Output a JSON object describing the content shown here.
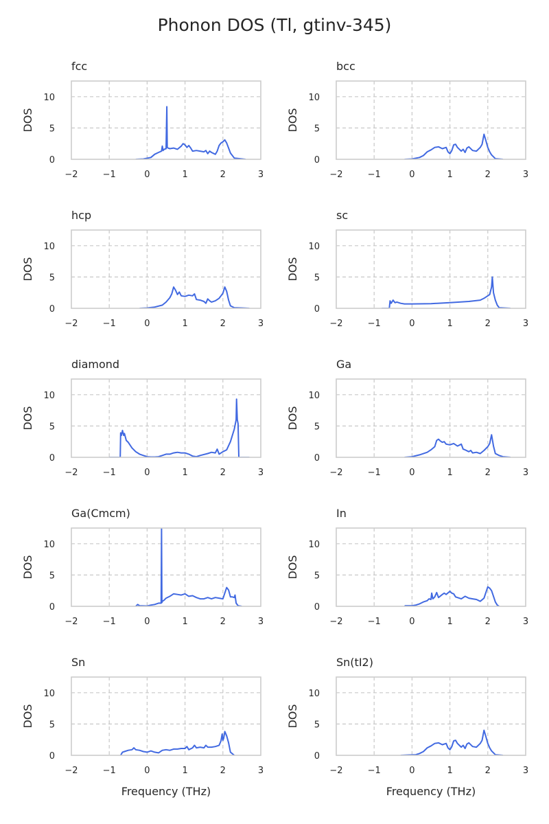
{
  "figure": {
    "title": "Phonon DOS (Tl, gtinv-345)",
    "x_label": "Frequency (THz)",
    "y_label": "DOS"
  },
  "colors": {
    "line": "#4169E1",
    "grid": "#c8c8c8",
    "frame": "#cccccc",
    "text": "#262626"
  },
  "chart_data": [
    {
      "type": "line",
      "title": "fcc",
      "xlabel": "",
      "ylabel": "DOS",
      "xlim": [
        -2,
        3
      ],
      "ylim": [
        0,
        12.5
      ],
      "xticks": [
        -2,
        -1,
        0,
        1,
        2,
        3
      ],
      "yticks": [
        0,
        5,
        10
      ],
      "grid": true,
      "x": [
        -0.3,
        -0.1,
        0.1,
        0.2,
        0.3,
        0.38,
        0.4,
        0.42,
        0.45,
        0.5,
        0.52,
        0.53,
        0.55,
        0.6,
        0.7,
        0.8,
        0.9,
        0.95,
        1.0,
        1.05,
        1.1,
        1.15,
        1.2,
        1.3,
        1.4,
        1.5,
        1.55,
        1.6,
        1.65,
        1.7,
        1.8,
        1.85,
        1.9,
        1.95,
        2.0,
        2.05,
        2.1,
        2.15,
        2.2,
        2.3,
        2.6
      ],
      "values": [
        0,
        0.05,
        0.3,
        0.8,
        1.1,
        1.3,
        2.1,
        1.4,
        1.6,
        1.7,
        8.4,
        1.9,
        1.8,
        1.7,
        1.8,
        1.6,
        2.1,
        2.5,
        2.3,
        1.9,
        2.2,
        1.8,
        1.3,
        1.4,
        1.3,
        1.2,
        1.4,
        0.9,
        1.3,
        1.1,
        0.8,
        1.3,
        2.2,
        2.6,
        2.8,
        3.1,
        2.6,
        1.8,
        1.0,
        0.2,
        0
      ]
    },
    {
      "type": "line",
      "title": "bcc",
      "xlabel": "",
      "ylabel": "DOS",
      "xlim": [
        -2,
        3
      ],
      "ylim": [
        0,
        12.5
      ],
      "xticks": [
        -2,
        -1,
        0,
        1,
        2,
        3
      ],
      "yticks": [
        0,
        5,
        10
      ],
      "grid": true,
      "x": [
        -0.2,
        0.0,
        0.2,
        0.3,
        0.4,
        0.5,
        0.6,
        0.7,
        0.8,
        0.9,
        0.95,
        1.0,
        1.05,
        1.1,
        1.15,
        1.2,
        1.3,
        1.35,
        1.4,
        1.45,
        1.5,
        1.6,
        1.7,
        1.8,
        1.85,
        1.9,
        1.95,
        2.0,
        2.05,
        2.1,
        2.2,
        2.4
      ],
      "values": [
        0,
        0.05,
        0.3,
        0.6,
        1.2,
        1.5,
        1.9,
        2.0,
        1.7,
        1.9,
        1.2,
        0.9,
        1.4,
        2.3,
        2.4,
        1.9,
        1.3,
        1.6,
        1.1,
        1.8,
        2.0,
        1.4,
        1.3,
        1.9,
        2.4,
        4.0,
        3.0,
        1.9,
        1.2,
        0.7,
        0.1,
        0
      ]
    },
    {
      "type": "line",
      "title": "hcp",
      "xlabel": "",
      "ylabel": "DOS",
      "xlim": [
        -2,
        3
      ],
      "ylim": [
        0,
        12.5
      ],
      "xticks": [
        -2,
        -1,
        0,
        1,
        2,
        3
      ],
      "yticks": [
        0,
        5,
        10
      ],
      "grid": true,
      "x": [
        -0.2,
        0.0,
        0.2,
        0.4,
        0.5,
        0.6,
        0.65,
        0.7,
        0.75,
        0.8,
        0.85,
        0.9,
        1.0,
        1.1,
        1.2,
        1.25,
        1.3,
        1.4,
        1.5,
        1.55,
        1.6,
        1.65,
        1.7,
        1.8,
        1.9,
        1.95,
        2.0,
        2.05,
        2.1,
        2.15,
        2.2,
        2.3,
        2.5,
        2.7
      ],
      "values": [
        0,
        0.05,
        0.2,
        0.5,
        1.0,
        1.7,
        2.3,
        3.4,
        2.9,
        2.2,
        2.6,
        2.0,
        1.9,
        2.1,
        2.0,
        2.3,
        1.4,
        1.3,
        1.1,
        0.8,
        1.5,
        1.2,
        1.0,
        1.2,
        1.6,
        2.0,
        2.4,
        3.4,
        2.7,
        1.3,
        0.4,
        0.1,
        0.05,
        0
      ]
    },
    {
      "type": "line",
      "title": "sc",
      "xlabel": "",
      "ylabel": "DOS",
      "xlim": [
        -2,
        3
      ],
      "ylim": [
        0,
        12.5
      ],
      "xticks": [
        -2,
        -1,
        0,
        1,
        2,
        3
      ],
      "yticks": [
        0,
        5,
        10
      ],
      "grid": true,
      "x": [
        -0.8,
        -0.6,
        -0.58,
        -0.55,
        -0.5,
        -0.45,
        -0.4,
        -0.3,
        -0.2,
        0.0,
        0.5,
        1.0,
        1.5,
        1.8,
        1.9,
        2.0,
        2.05,
        2.1,
        2.12,
        2.15,
        2.2,
        2.25,
        2.3,
        2.6
      ],
      "values": [
        0,
        0,
        1.2,
        0.8,
        1.3,
        0.9,
        1.0,
        0.8,
        0.7,
        0.7,
        0.75,
        0.9,
        1.1,
        1.3,
        1.6,
        2.0,
        2.2,
        3.4,
        5.0,
        2.5,
        1.3,
        0.5,
        0.1,
        0
      ]
    },
    {
      "type": "line",
      "title": "diamond",
      "xlabel": "",
      "ylabel": "DOS",
      "xlim": [
        -2,
        3
      ],
      "ylim": [
        0,
        12.5
      ],
      "xticks": [
        -2,
        -1,
        0,
        1,
        2,
        3
      ],
      "yticks": [
        0,
        5,
        10
      ],
      "grid": true,
      "x": [
        -1.0,
        -0.71,
        -0.7,
        -0.68,
        -0.65,
        -0.62,
        -0.6,
        -0.55,
        -0.5,
        -0.4,
        -0.3,
        -0.2,
        -0.1,
        0.0,
        0.1,
        0.2,
        0.3,
        0.4,
        0.5,
        0.6,
        0.7,
        0.8,
        0.9,
        1.0,
        1.1,
        1.2,
        1.3,
        1.4,
        1.6,
        1.7,
        1.8,
        1.85,
        1.9,
        2.0,
        2.1,
        2.2,
        2.25,
        2.3,
        2.35,
        2.36,
        2.38,
        2.4,
        2.42,
        2.45,
        2.7
      ],
      "values": [
        0,
        0,
        3.9,
        3.5,
        4.3,
        3.5,
        3.8,
        2.7,
        2.4,
        1.5,
        0.9,
        0.5,
        0.3,
        0.1,
        0.05,
        0.05,
        0.1,
        0.3,
        0.5,
        0.5,
        0.7,
        0.8,
        0.7,
        0.7,
        0.5,
        0.2,
        0.1,
        0.3,
        0.6,
        0.8,
        0.7,
        1.3,
        0.5,
        0.9,
        1.2,
        2.5,
        3.5,
        4.5,
        6.0,
        9.3,
        6.0,
        5.4,
        0.1,
        0,
        0
      ]
    },
    {
      "type": "line",
      "title": "Ga",
      "xlabel": "",
      "ylabel": "DOS",
      "xlim": [
        -2,
        3
      ],
      "ylim": [
        0,
        12.5
      ],
      "xticks": [
        -2,
        -1,
        0,
        1,
        2,
        3
      ],
      "yticks": [
        0,
        5,
        10
      ],
      "grid": true,
      "x": [
        -0.2,
        0.0,
        0.2,
        0.4,
        0.5,
        0.6,
        0.65,
        0.7,
        0.75,
        0.8,
        0.85,
        0.9,
        1.0,
        1.1,
        1.2,
        1.3,
        1.35,
        1.4,
        1.5,
        1.55,
        1.6,
        1.7,
        1.8,
        1.9,
        2.0,
        2.05,
        2.1,
        2.15,
        2.2,
        2.3,
        2.4,
        2.6
      ],
      "values": [
        0,
        0.1,
        0.4,
        0.8,
        1.2,
        1.7,
        2.7,
        2.9,
        2.6,
        2.4,
        2.5,
        2.1,
        2.0,
        2.2,
        1.8,
        2.1,
        1.3,
        1.2,
        0.9,
        1.1,
        0.7,
        0.8,
        0.6,
        1.1,
        1.7,
        2.2,
        3.6,
        1.8,
        0.6,
        0.3,
        0.1,
        0
      ]
    },
    {
      "type": "line",
      "title": "Ga(Cmcm)",
      "xlabel": "",
      "ylabel": "DOS",
      "xlim": [
        -2,
        3
      ],
      "ylim": [
        0,
        12.5
      ],
      "xticks": [
        -2,
        -1,
        0,
        1,
        2,
        3
      ],
      "yticks": [
        0,
        5,
        10
      ],
      "grid": true,
      "x": [
        -0.3,
        -0.25,
        -0.2,
        0.0,
        0.1,
        0.2,
        0.3,
        0.37,
        0.38,
        0.39,
        0.4,
        0.45,
        0.5,
        0.6,
        0.7,
        0.8,
        0.9,
        1.0,
        1.1,
        1.2,
        1.3,
        1.4,
        1.5,
        1.6,
        1.7,
        1.8,
        1.9,
        2.0,
        2.1,
        2.15,
        2.2,
        2.25,
        2.3,
        2.32,
        2.35,
        2.4,
        2.5
      ],
      "values": [
        0,
        0.3,
        0.1,
        0.05,
        0.2,
        0.3,
        0.5,
        0.5,
        12.5,
        0.6,
        0.8,
        1.0,
        1.3,
        1.6,
        2.0,
        1.9,
        1.8,
        2.0,
        1.6,
        1.7,
        1.4,
        1.2,
        1.2,
        1.4,
        1.2,
        1.4,
        1.3,
        1.2,
        3.0,
        2.6,
        1.5,
        1.5,
        1.4,
        1.8,
        0.5,
        0.1,
        0
      ]
    },
    {
      "type": "line",
      "title": "In",
      "xlabel": "",
      "ylabel": "DOS",
      "xlim": [
        -2,
        3
      ],
      "ylim": [
        0,
        12.5
      ],
      "xticks": [
        -2,
        -1,
        0,
        1,
        2,
        3
      ],
      "yticks": [
        0,
        5,
        10
      ],
      "grid": true,
      "x": [
        -0.2,
        -0.18,
        0.0,
        0.1,
        0.2,
        0.3,
        0.4,
        0.45,
        0.5,
        0.52,
        0.55,
        0.6,
        0.65,
        0.7,
        0.8,
        0.85,
        0.9,
        1.0,
        1.05,
        1.1,
        1.15,
        1.2,
        1.3,
        1.4,
        1.5,
        1.6,
        1.7,
        1.8,
        1.9,
        1.95,
        2.0,
        2.05,
        2.1,
        2.15,
        2.2,
        2.25,
        2.3
      ],
      "values": [
        0,
        0.1,
        0.1,
        0.2,
        0.4,
        0.7,
        0.9,
        1.2,
        1.1,
        2.1,
        1.2,
        1.5,
        2.2,
        1.4,
        1.9,
        2.1,
        1.9,
        2.4,
        2.1,
        2.0,
        1.5,
        1.4,
        1.2,
        1.6,
        1.3,
        1.2,
        1.1,
        0.8,
        1.3,
        2.2,
        3.1,
        2.9,
        2.5,
        1.6,
        0.7,
        0.2,
        0
      ]
    },
    {
      "type": "line",
      "title": "Sn",
      "xlabel": "Frequency (THz)",
      "ylabel": "DOS",
      "xlim": [
        -2,
        3
      ],
      "ylim": [
        0,
        12.5
      ],
      "xticks": [
        -2,
        -1,
        0,
        1,
        2,
        3
      ],
      "yticks": [
        0,
        5,
        10
      ],
      "grid": true,
      "x": [
        -0.7,
        -0.65,
        -0.6,
        -0.5,
        -0.4,
        -0.35,
        -0.3,
        -0.2,
        -0.1,
        0.0,
        0.1,
        0.2,
        0.3,
        0.4,
        0.5,
        0.6,
        0.7,
        0.8,
        0.9,
        1.0,
        1.05,
        1.1,
        1.2,
        1.25,
        1.3,
        1.4,
        1.5,
        1.55,
        1.6,
        1.7,
        1.8,
        1.9,
        1.95,
        1.98,
        2.0,
        2.02,
        2.05,
        2.1,
        2.15,
        2.2,
        2.3
      ],
      "values": [
        0,
        0.5,
        0.6,
        0.8,
        0.9,
        1.2,
        0.9,
        0.8,
        0.6,
        0.5,
        0.7,
        0.5,
        0.4,
        0.8,
        0.9,
        0.8,
        1.0,
        1.0,
        1.1,
        1.1,
        1.4,
        0.9,
        1.2,
        1.6,
        1.2,
        1.3,
        1.2,
        1.6,
        1.3,
        1.3,
        1.4,
        1.6,
        2.3,
        3.4,
        2.4,
        2.7,
        3.8,
        3.1,
        2.0,
        0.5,
        0
      ]
    },
    {
      "type": "line",
      "title": "Sn(tI2)",
      "xlabel": "Frequency (THz)",
      "ylabel": "DOS",
      "xlim": [
        -2,
        3
      ],
      "ylim": [
        0,
        12.5
      ],
      "xticks": [
        -2,
        -1,
        0,
        1,
        2,
        3
      ],
      "yticks": [
        0,
        5,
        10
      ],
      "grid": true,
      "x": [
        -0.3,
        -0.1,
        0.1,
        0.2,
        0.3,
        0.4,
        0.5,
        0.6,
        0.7,
        0.8,
        0.9,
        0.95,
        1.0,
        1.05,
        1.1,
        1.15,
        1.2,
        1.3,
        1.35,
        1.4,
        1.45,
        1.5,
        1.6,
        1.7,
        1.8,
        1.85,
        1.9,
        1.95,
        2.0,
        2.05,
        2.1,
        2.2,
        2.4
      ],
      "values": [
        0,
        0.05,
        0.1,
        0.3,
        0.6,
        1.2,
        1.5,
        1.9,
        2.0,
        1.7,
        1.9,
        1.2,
        0.9,
        1.4,
        2.3,
        2.4,
        1.9,
        1.3,
        1.6,
        1.1,
        1.8,
        2.0,
        1.4,
        1.3,
        1.9,
        2.4,
        4.0,
        3.0,
        1.9,
        1.2,
        0.7,
        0.1,
        0
      ]
    }
  ]
}
